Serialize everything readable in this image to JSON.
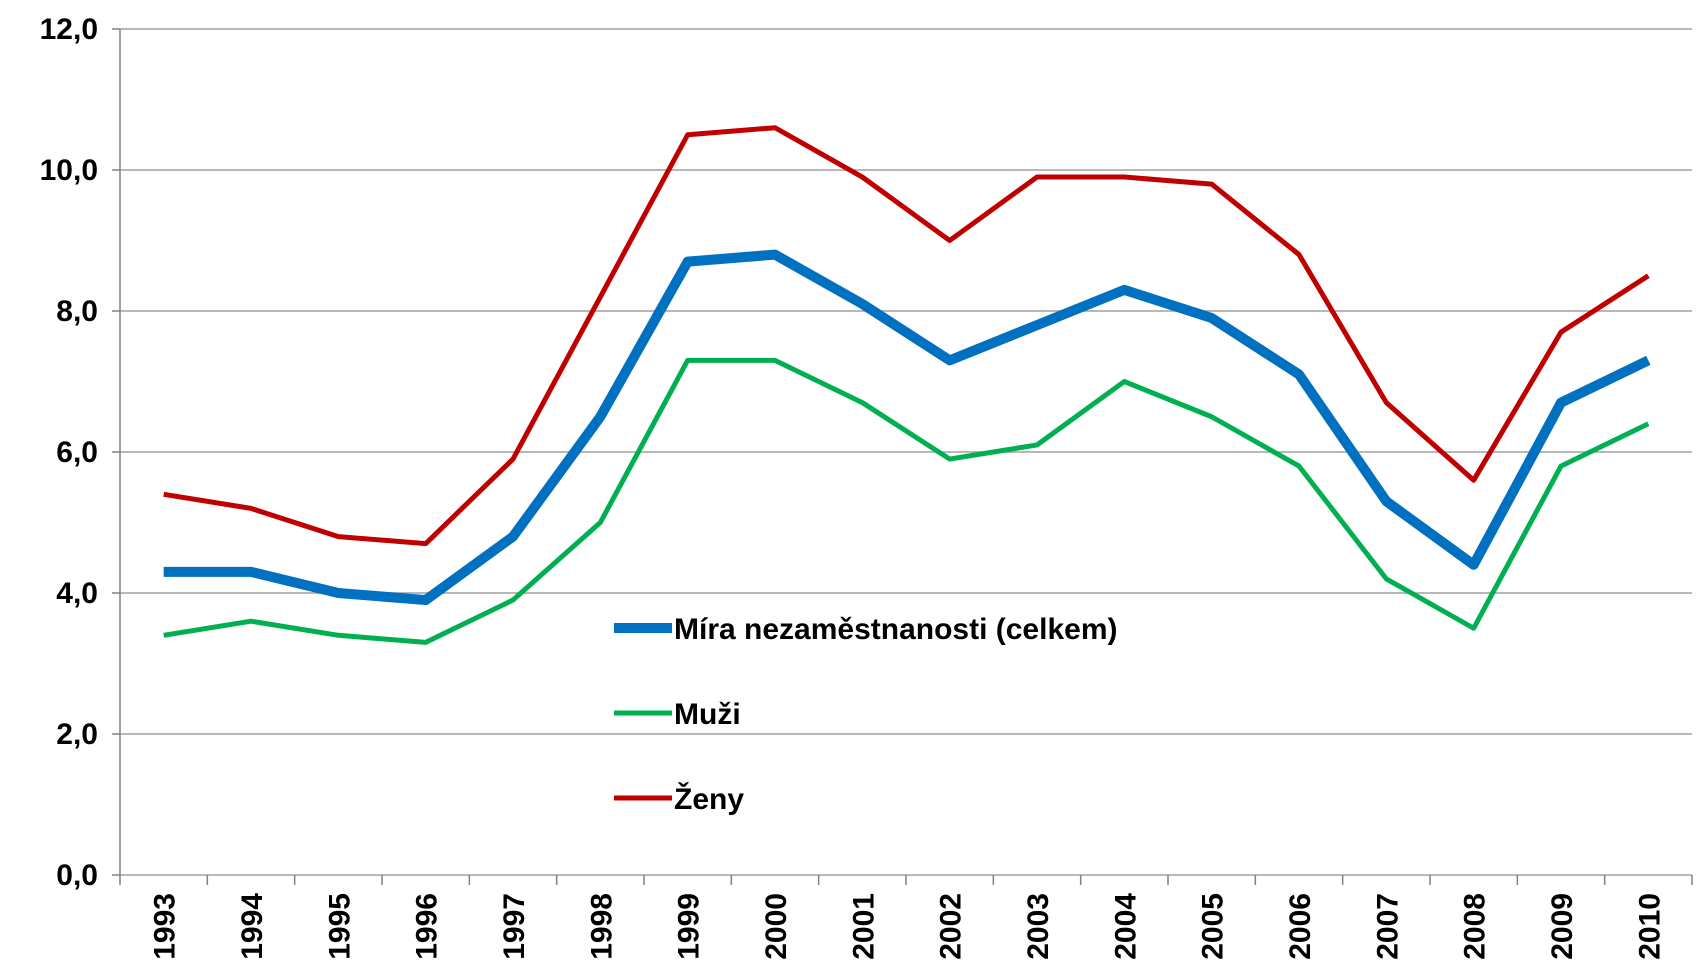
{
  "chart_data": {
    "type": "line",
    "categories": [
      "1993",
      "1994",
      "1995",
      "1996",
      "1997",
      "1998",
      "1999",
      "2000",
      "2001",
      "2002",
      "2003",
      "2004",
      "2005",
      "2006",
      "2007",
      "2008",
      "2009",
      "2010"
    ],
    "series": [
      {
        "name": "Míra nezaměstnanosti (celkem)",
        "color": "#0070c0",
        "width": 10,
        "values": [
          4.3,
          4.3,
          4.0,
          3.9,
          4.8,
          6.5,
          8.7,
          8.8,
          8.1,
          7.3,
          7.8,
          8.3,
          7.9,
          7.1,
          5.3,
          4.4,
          6.7,
          7.3
        ]
      },
      {
        "name": "Muži",
        "color": "#00b050",
        "width": 5,
        "values": [
          3.4,
          3.6,
          3.4,
          3.3,
          3.9,
          5.0,
          7.3,
          7.3,
          6.7,
          5.9,
          6.1,
          7.0,
          6.5,
          5.8,
          4.2,
          3.5,
          5.8,
          6.4
        ]
      },
      {
        "name": "Ženy",
        "color": "#c00000",
        "width": 5,
        "values": [
          5.4,
          5.2,
          4.8,
          4.7,
          5.9,
          8.2,
          10.5,
          10.6,
          9.9,
          9.0,
          9.9,
          9.9,
          9.8,
          8.8,
          6.7,
          5.6,
          7.7,
          8.5
        ]
      }
    ],
    "ylim": [
      0,
      12
    ],
    "yticks": [
      {
        "value": 0,
        "label": "0,0"
      },
      {
        "value": 2,
        "label": "2,0"
      },
      {
        "value": 4,
        "label": "4,0"
      },
      {
        "value": 6,
        "label": "6,0"
      },
      {
        "value": 8,
        "label": "8,0"
      },
      {
        "value": 10,
        "label": "10,0"
      },
      {
        "value": 12,
        "label": "12,0"
      }
    ],
    "grid": true
  }
}
